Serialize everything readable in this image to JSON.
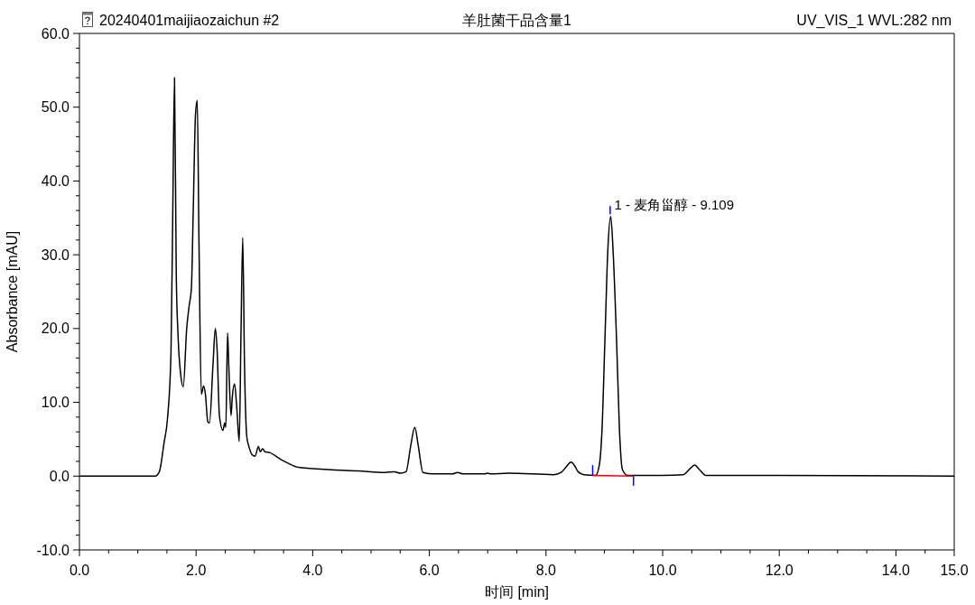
{
  "chart_data": {
    "type": "line",
    "title": "羊肚菌干品含量1",
    "xlabel": "时间 [min]",
    "ylabel": "Absorbance [mAU]",
    "annotations": [
      "20240401maijiaozaichun #2",
      "UV_VIS_1 WVL:282 nm",
      {
        "text": "1 - 麦角甾醇 - 9.109",
        "x": 9.109,
        "y": 35.2
      }
    ],
    "xlim": [
      0,
      15
    ],
    "ylim": [
      -10,
      60
    ],
    "xticks": [
      {
        "value": 0,
        "label": "0.0"
      },
      {
        "value": 0.5,
        "label": null
      },
      {
        "value": 1,
        "label": null
      },
      {
        "value": 1.5,
        "label": null
      },
      {
        "value": 2,
        "label": "2.0"
      },
      {
        "value": 2.5,
        "label": null
      },
      {
        "value": 3,
        "label": null
      },
      {
        "value": 3.5,
        "label": null
      },
      {
        "value": 4,
        "label": "4.0"
      },
      {
        "value": 4.5,
        "label": null
      },
      {
        "value": 5,
        "label": null
      },
      {
        "value": 5.5,
        "label": null
      },
      {
        "value": 6,
        "label": "6.0"
      },
      {
        "value": 6.5,
        "label": null
      },
      {
        "value": 7,
        "label": null
      },
      {
        "value": 7.5,
        "label": null
      },
      {
        "value": 8,
        "label": "8.0"
      },
      {
        "value": 8.5,
        "label": null
      },
      {
        "value": 9,
        "label": null
      },
      {
        "value": 9.5,
        "label": null
      },
      {
        "value": 10,
        "label": "10.0"
      },
      {
        "value": 10.5,
        "label": null
      },
      {
        "value": 11,
        "label": null
      },
      {
        "value": 11.5,
        "label": null
      },
      {
        "value": 12,
        "label": "12.0"
      },
      {
        "value": 12.5,
        "label": null
      },
      {
        "value": 13,
        "label": null
      },
      {
        "value": 13.5,
        "label": null
      },
      {
        "value": 14,
        "label": "14.0"
      },
      {
        "value": 14.5,
        "label": null
      },
      {
        "value": 15,
        "label": "15.0"
      }
    ],
    "yticks": [
      {
        "value": -10,
        "label": "-10.0"
      },
      {
        "value": -8,
        "label": null
      },
      {
        "value": -6,
        "label": null
      },
      {
        "value": -4,
        "label": null
      },
      {
        "value": -2,
        "label": null
      },
      {
        "value": 0,
        "label": "0.0"
      },
      {
        "value": 2,
        "label": null
      },
      {
        "value": 4,
        "label": null
      },
      {
        "value": 6,
        "label": null
      },
      {
        "value": 8,
        "label": null
      },
      {
        "value": 10,
        "label": "10.0"
      },
      {
        "value": 12,
        "label": null
      },
      {
        "value": 14,
        "label": null
      },
      {
        "value": 16,
        "label": null
      },
      {
        "value": 18,
        "label": null
      },
      {
        "value": 20,
        "label": "20.0"
      },
      {
        "value": 22,
        "label": null
      },
      {
        "value": 24,
        "label": null
      },
      {
        "value": 26,
        "label": null
      },
      {
        "value": 28,
        "label": null
      },
      {
        "value": 30,
        "label": "30.0"
      },
      {
        "value": 32,
        "label": null
      },
      {
        "value": 34,
        "label": null
      },
      {
        "value": 36,
        "label": null
      },
      {
        "value": 38,
        "label": null
      },
      {
        "value": 40,
        "label": "40.0"
      },
      {
        "value": 42,
        "label": null
      },
      {
        "value": 44,
        "label": null
      },
      {
        "value": 46,
        "label": null
      },
      {
        "value": 48,
        "label": null
      },
      {
        "value": 50,
        "label": "50.0"
      },
      {
        "value": 52,
        "label": null
      },
      {
        "value": 54,
        "label": null
      },
      {
        "value": 56,
        "label": null
      },
      {
        "value": 58,
        "label": null
      },
      {
        "value": 60,
        "label": "60.0"
      }
    ],
    "marker": "none",
    "line_style": "solid",
    "series": [
      {
        "color": "#000000",
        "x": [
          0,
          1.3,
          1.37,
          1.45,
          1.51,
          1.57,
          1.6,
          1.63,
          1.66,
          1.69,
          1.74,
          1.78,
          1.84,
          1.88,
          1.92,
          1.95,
          1.99,
          2.02,
          2.05,
          2.09,
          2.13,
          2.16,
          2.2,
          2.23,
          2.29,
          2.33,
          2.36,
          2.4,
          2.46,
          2.49,
          2.51,
          2.54,
          2.56,
          2.6,
          2.62,
          2.66,
          2.7,
          2.74,
          2.77,
          2.8,
          2.83,
          2.87,
          2.91,
          2.96,
          3.01,
          3.07,
          3.1,
          3.14,
          3.18,
          3.26,
          3.39,
          3.49,
          3.59,
          3.75,
          4.26,
          4.78,
          5.24,
          5.4,
          5.5,
          5.6,
          5.68,
          5.75,
          5.81,
          5.89,
          6.07,
          6.4,
          6.48,
          6.58,
          6.95,
          7.0,
          7.05,
          7.36,
          8.13,
          8.26,
          8.35,
          8.43,
          8.5,
          8.55,
          8.65,
          8.85,
          8.91,
          8.96,
          9.01,
          9.06,
          9.11,
          9.15,
          9.21,
          9.26,
          9.31,
          9.4,
          9.99,
          10.35,
          10.48,
          10.55,
          10.63,
          10.74,
          12.0,
          15.0
        ],
        "values": [
          0,
          0,
          0.6,
          4.5,
          7.8,
          16.8,
          35.5,
          54.0,
          27.4,
          19.2,
          13.5,
          12.1,
          20.1,
          23.0,
          25.5,
          35.5,
          49.0,
          50.9,
          31.5,
          11.1,
          12.2,
          11.1,
          7.4,
          7.2,
          15.1,
          20.0,
          17.2,
          8.2,
          6.2,
          7.2,
          6.6,
          19.4,
          15.1,
          8.2,
          10.6,
          12.5,
          9.0,
          4.7,
          19.2,
          32.3,
          15.2,
          5.3,
          3.9,
          2.9,
          2.7,
          4.0,
          3.3,
          3.7,
          3.3,
          3.2,
          2.6,
          2.1,
          1.7,
          1.2,
          0.9,
          0.7,
          0.5,
          0.6,
          0.4,
          0.6,
          4.1,
          6.6,
          4.1,
          0.5,
          0.3,
          0.3,
          0.5,
          0.3,
          0.3,
          0.4,
          0.3,
          0.4,
          0.2,
          0.5,
          1.3,
          1.9,
          1.3,
          0.6,
          0.2,
          0.1,
          1.3,
          6.2,
          18.4,
          30.6,
          35.2,
          30.6,
          18.4,
          6.2,
          0.9,
          0.1,
          0.1,
          0.2,
          1.1,
          1.5,
          0.9,
          0.1,
          0.1,
          0.0
        ]
      },
      {
        "color": "#ff0000",
        "x": [
          8.8,
          9.5
        ],
        "values": [
          0.1,
          0.0
        ]
      },
      {
        "color": "#0000ff",
        "x": [
          8.8,
          8.8
        ],
        "values": [
          0.1,
          1.5
        ]
      },
      {
        "color": "#0000ff",
        "x": [
          9.5,
          9.5
        ],
        "values": [
          0.0,
          -1.3
        ]
      },
      {
        "color": "#0000ff",
        "x": [
          9.1,
          9.1
        ],
        "values": [
          35.5,
          36.6
        ]
      }
    ]
  }
}
